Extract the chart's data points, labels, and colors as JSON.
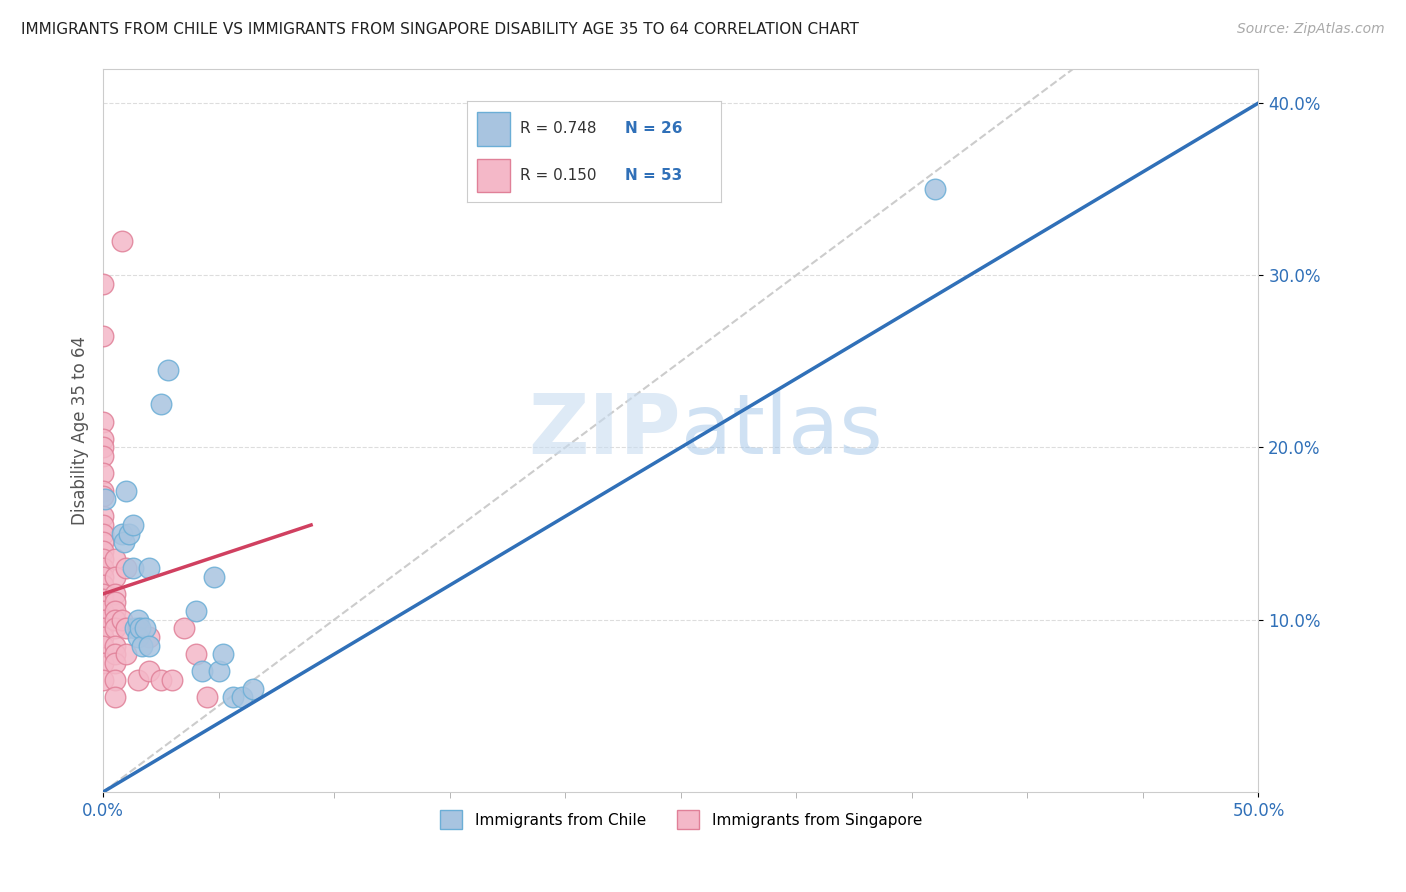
{
  "title": "IMMIGRANTS FROM CHILE VS IMMIGRANTS FROM SINGAPORE DISABILITY AGE 35 TO 64 CORRELATION CHART",
  "source": "Source: ZipAtlas.com",
  "ylabel": "Disability Age 35 to 64",
  "xlim": [
    0.0,
    0.5
  ],
  "ylim": [
    0.0,
    0.42
  ],
  "xtick_labels_shown": [
    "0.0%",
    "50.0%"
  ],
  "xtick_values_shown": [
    0.0,
    0.5
  ],
  "xtick_minor": [
    0.05,
    0.1,
    0.15,
    0.2,
    0.25,
    0.3,
    0.35,
    0.4,
    0.45
  ],
  "ytick_labels": [
    "10.0%",
    "20.0%",
    "30.0%",
    "40.0%"
  ],
  "ytick_values": [
    0.1,
    0.2,
    0.3,
    0.4
  ],
  "chile_color": "#a8c4e0",
  "chile_edge_color": "#6baed6",
  "singapore_color": "#f4b8c8",
  "singapore_edge_color": "#e08098",
  "chile_R": 0.748,
  "chile_N": 26,
  "singapore_R": 0.15,
  "singapore_N": 53,
  "regression_line_color_chile": "#3070b8",
  "regression_line_color_singapore": "#d04060",
  "diagonal_color": "#cccccc",
  "watermark_zip": "ZIP",
  "watermark_atlas": "atlas",
  "legend_label_chile": "Immigrants from Chile",
  "legend_label_singapore": "Immigrants from Singapore",
  "chile_line_x": [
    0.0,
    0.5
  ],
  "chile_line_y": [
    0.0,
    0.4
  ],
  "singapore_line_x": [
    0.0,
    0.09
  ],
  "singapore_line_y": [
    0.115,
    0.155
  ],
  "chile_scatter": [
    [
      0.001,
      0.17
    ],
    [
      0.008,
      0.15
    ],
    [
      0.009,
      0.145
    ],
    [
      0.01,
      0.175
    ],
    [
      0.011,
      0.15
    ],
    [
      0.013,
      0.13
    ],
    [
      0.013,
      0.155
    ],
    [
      0.014,
      0.095
    ],
    [
      0.015,
      0.1
    ],
    [
      0.015,
      0.09
    ],
    [
      0.016,
      0.095
    ],
    [
      0.017,
      0.085
    ],
    [
      0.018,
      0.095
    ],
    [
      0.02,
      0.13
    ],
    [
      0.02,
      0.085
    ],
    [
      0.025,
      0.225
    ],
    [
      0.028,
      0.245
    ],
    [
      0.04,
      0.105
    ],
    [
      0.043,
      0.07
    ],
    [
      0.048,
      0.125
    ],
    [
      0.05,
      0.07
    ],
    [
      0.052,
      0.08
    ],
    [
      0.056,
      0.055
    ],
    [
      0.06,
      0.055
    ],
    [
      0.065,
      0.06
    ],
    [
      0.36,
      0.35
    ]
  ],
  "singapore_scatter": [
    [
      0.0,
      0.295
    ],
    [
      0.0,
      0.265
    ],
    [
      0.0,
      0.215
    ],
    [
      0.0,
      0.205
    ],
    [
      0.0,
      0.2
    ],
    [
      0.0,
      0.195
    ],
    [
      0.0,
      0.185
    ],
    [
      0.0,
      0.175
    ],
    [
      0.0,
      0.172
    ],
    [
      0.0,
      0.16
    ],
    [
      0.0,
      0.155
    ],
    [
      0.0,
      0.15
    ],
    [
      0.0,
      0.145
    ],
    [
      0.0,
      0.14
    ],
    [
      0.0,
      0.135
    ],
    [
      0.0,
      0.13
    ],
    [
      0.0,
      0.125
    ],
    [
      0.0,
      0.12
    ],
    [
      0.0,
      0.115
    ],
    [
      0.0,
      0.112
    ],
    [
      0.0,
      0.105
    ],
    [
      0.0,
      0.1
    ],
    [
      0.0,
      0.095
    ],
    [
      0.0,
      0.09
    ],
    [
      0.0,
      0.085
    ],
    [
      0.0,
      0.075
    ],
    [
      0.0,
      0.065
    ],
    [
      0.005,
      0.135
    ],
    [
      0.005,
      0.125
    ],
    [
      0.005,
      0.115
    ],
    [
      0.005,
      0.11
    ],
    [
      0.005,
      0.105
    ],
    [
      0.005,
      0.1
    ],
    [
      0.005,
      0.095
    ],
    [
      0.005,
      0.085
    ],
    [
      0.005,
      0.08
    ],
    [
      0.005,
      0.075
    ],
    [
      0.005,
      0.065
    ],
    [
      0.005,
      0.055
    ],
    [
      0.008,
      0.32
    ],
    [
      0.008,
      0.1
    ],
    [
      0.01,
      0.13
    ],
    [
      0.01,
      0.095
    ],
    [
      0.01,
      0.08
    ],
    [
      0.015,
      0.095
    ],
    [
      0.015,
      0.065
    ],
    [
      0.02,
      0.09
    ],
    [
      0.02,
      0.07
    ],
    [
      0.025,
      0.065
    ],
    [
      0.03,
      0.065
    ],
    [
      0.035,
      0.095
    ],
    [
      0.04,
      0.08
    ],
    [
      0.045,
      0.055
    ]
  ]
}
